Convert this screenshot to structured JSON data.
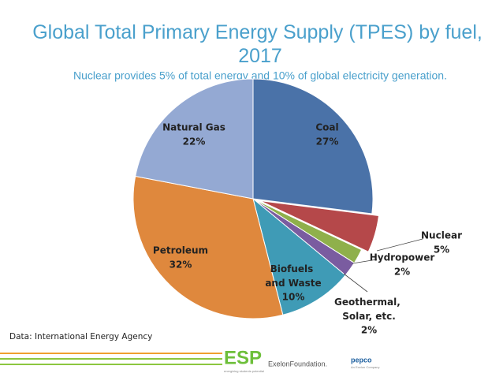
{
  "chart_data": {
    "type": "pie",
    "title": "Global Total Primary Energy Supply (TPES) by fuel, 2017",
    "subtitle": "Nuclear provides 5% of total energy and 10% of global electricity generation.",
    "categories": [
      "Coal",
      "Nuclear",
      "Hydropower",
      "Geothermal, Solar, etc.",
      "Biofuels and Waste",
      "Petroleum",
      "Natural Gas"
    ],
    "values": [
      27,
      5,
      2,
      2,
      10,
      32,
      22
    ],
    "value_labels": [
      "27%",
      "5%",
      "2%",
      "2%",
      "10%",
      "32%",
      "22%"
    ],
    "colors": [
      "#4a72a8",
      "#b5484a",
      "#8fb04b",
      "#7a5ca0",
      "#3f9bb6",
      "#df883d",
      "#94a9d3"
    ],
    "source": "Data: International Energy Agency"
  },
  "footer": {
    "logos": [
      "ESP",
      "energizing students potential",
      "ExelonFoundation.",
      "pepco",
      "An Exelon Company"
    ]
  }
}
